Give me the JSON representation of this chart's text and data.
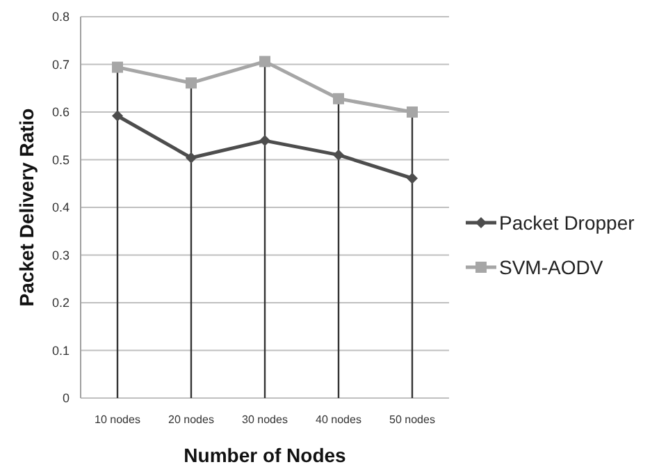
{
  "chart_data": {
    "type": "line",
    "xlabel": "Number of Nodes",
    "ylabel": "Packet Delivery Ratio",
    "categories": [
      "10 nodes",
      "20 nodes",
      "30 nodes",
      "40 nodes",
      "50 nodes"
    ],
    "series": [
      {
        "name": "Packet Dropper",
        "color": "#4d4d4d",
        "marker": "diamond",
        "values": [
          0.592,
          0.504,
          0.54,
          0.51,
          0.461
        ]
      },
      {
        "name": "SVM-AODV",
        "color": "#a6a6a6",
        "marker": "square",
        "values": [
          0.694,
          0.661,
          0.706,
          0.628,
          0.6
        ]
      }
    ],
    "ylim": [
      0,
      0.8
    ],
    "yticks": [
      0,
      0.1,
      0.2,
      0.3,
      0.4,
      0.5,
      0.6,
      0.7,
      0.8
    ],
    "grid": true,
    "legend": "right",
    "line_style": "solid"
  }
}
